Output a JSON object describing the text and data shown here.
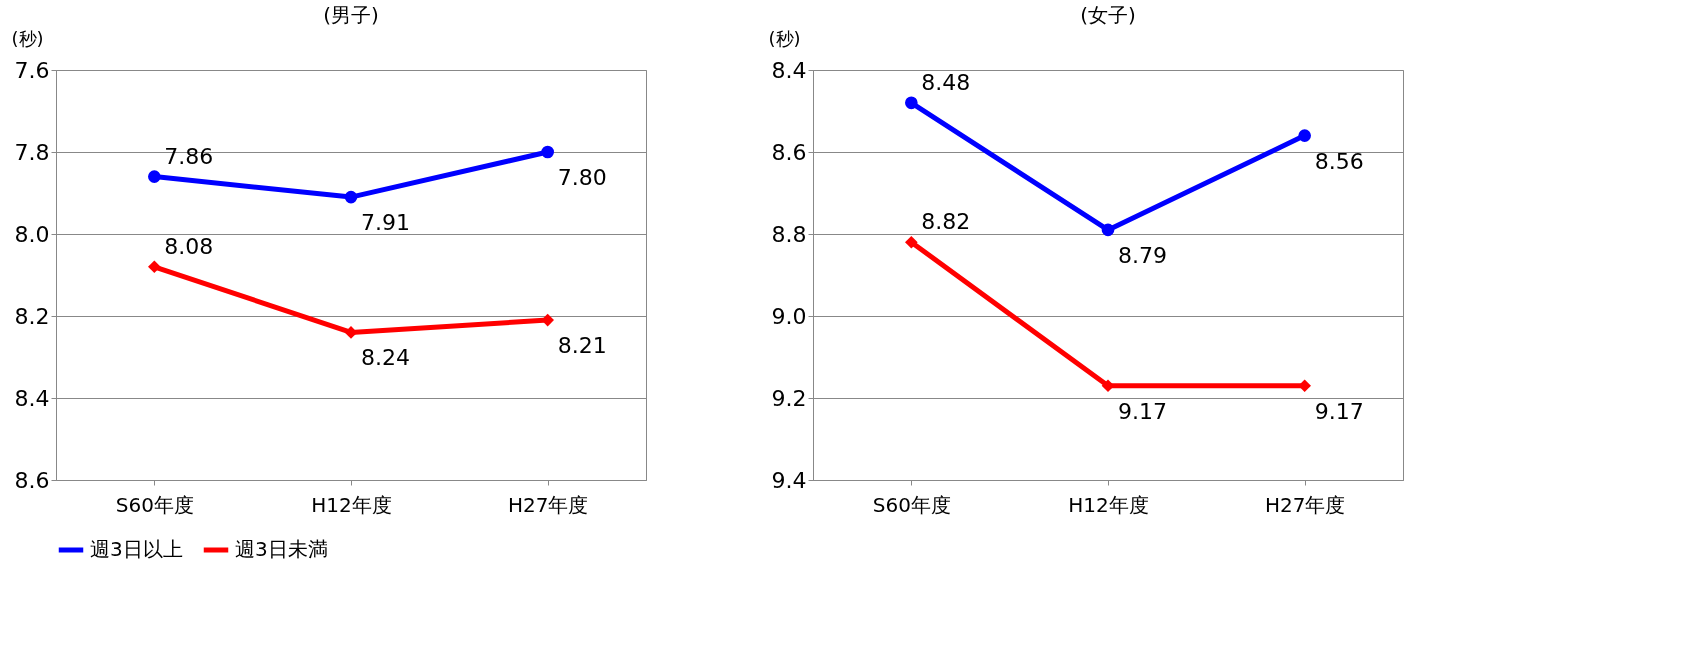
{
  "chart_data": [
    {
      "type": "line",
      "title": "(男子)",
      "ylabel": "(秒)",
      "categories": [
        "S60年度",
        "H12年度",
        "H27年度"
      ],
      "ylim": [
        8.6,
        7.6
      ],
      "yticks": [
        {
          "value": 7.6,
          "label": "7.6"
        },
        {
          "value": 7.8,
          "label": "7.8"
        },
        {
          "value": 8.0,
          "label": "8.0"
        },
        {
          "value": 8.2,
          "label": "8.2"
        },
        {
          "value": 8.4,
          "label": "8.4"
        },
        {
          "value": 8.6,
          "label": "8.6"
        }
      ],
      "grid": "y",
      "legend": "bottom",
      "line_style": "solid",
      "series": [
        {
          "name": "週3日以上",
          "color": "#0000ff",
          "marker": "circle",
          "values": [
            7.86,
            7.91,
            7.8
          ],
          "value_labels": [
            "7.86",
            "7.91",
            "7.80"
          ]
        },
        {
          "name": "週3日未満",
          "color": "#ff0000",
          "marker": "diamond",
          "values": [
            8.08,
            8.24,
            8.21
          ],
          "value_labels": [
            "8.08",
            "8.24",
            "8.21"
          ]
        }
      ]
    },
    {
      "type": "line",
      "title": "(女子)",
      "ylabel": "(秒)",
      "categories": [
        "S60年度",
        "H12年度",
        "H27年度"
      ],
      "ylim": [
        9.4,
        8.4
      ],
      "yticks": [
        {
          "value": 8.4,
          "label": "8.4"
        },
        {
          "value": 8.6,
          "label": "8.6"
        },
        {
          "value": 8.8,
          "label": "8.8"
        },
        {
          "value": 9.0,
          "label": "9.0"
        },
        {
          "value": 9.2,
          "label": "9.2"
        },
        {
          "value": 9.4,
          "label": "9.4"
        }
      ],
      "grid": "y",
      "line_style": "solid",
      "series": [
        {
          "color": "#0000ff",
          "marker": "circle",
          "values": [
            8.48,
            8.79,
            8.56
          ],
          "value_labels": [
            "8.48",
            "8.79",
            "8.56"
          ]
        },
        {
          "color": "#ff0000",
          "marker": "diamond",
          "values": [
            8.82,
            9.17,
            9.17
          ],
          "value_labels": [
            "8.82",
            "9.17",
            "9.17"
          ]
        }
      ]
    }
  ]
}
